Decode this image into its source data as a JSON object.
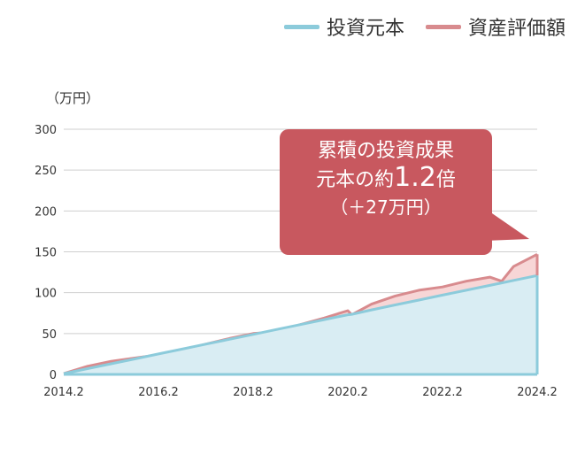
{
  "legend": {
    "principal_label": "投資元本",
    "asset_label": "資産評価額"
  },
  "unit_label": "（万円）",
  "callout": {
    "line1": "累積の投資成果",
    "line2_prefix": "元本の約",
    "multiplier": "1.2",
    "line2_suffix": "倍",
    "line3": "（＋27万円）",
    "color": "#c8585f"
  },
  "colors": {
    "principal_line": "#8ccbdb",
    "principal_fill": "#d9edf3",
    "asset_line": "#d88b8e",
    "asset_fill": "#f7d6d6",
    "grid": "#cfcfcf",
    "axis": "#444444"
  },
  "chart_data": {
    "type": "area",
    "title": "",
    "xlabel": "",
    "ylabel": "（万円）",
    "xlim": [
      "2014-02",
      "2024-02"
    ],
    "ylim": [
      0,
      300
    ],
    "yticks": [
      0,
      50,
      100,
      150,
      200,
      250,
      300
    ],
    "xticks": [
      "2014.2",
      "2016.2",
      "2018.2",
      "2020.2",
      "2022.2",
      "2024.2"
    ],
    "grid": true,
    "legend_position": "top-right",
    "x": [
      "2014-02",
      "2014-08",
      "2015-02",
      "2015-08",
      "2016-02",
      "2016-08",
      "2017-02",
      "2017-08",
      "2018-02",
      "2018-08",
      "2019-02",
      "2019-08",
      "2020-02",
      "2020-03",
      "2020-08",
      "2021-02",
      "2021-08",
      "2022-02",
      "2022-08",
      "2023-02",
      "2023-05",
      "2023-08",
      "2024-02"
    ],
    "series": [
      {
        "name": "投資元本",
        "values": [
          1,
          7,
          13,
          19,
          25,
          31,
          37,
          43,
          49,
          55,
          61,
          67,
          73,
          73.5,
          79,
          85,
          91,
          97,
          103,
          109,
          112,
          115,
          121
        ]
      },
      {
        "name": "資産評価額",
        "values": [
          1,
          10,
          16,
          20,
          24,
          30,
          37,
          44,
          50,
          52,
          61,
          69,
          78,
          73,
          86,
          96,
          103,
          107,
          114,
          119,
          114,
          132,
          147
        ]
      }
    ]
  }
}
